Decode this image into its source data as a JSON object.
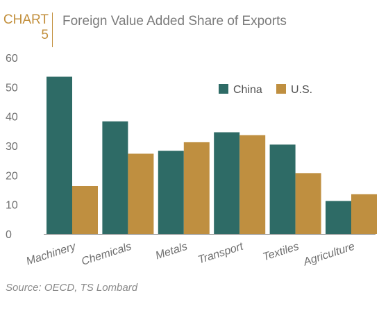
{
  "header": {
    "chart_word": "CHART",
    "chart_number": "5",
    "title": "Foreign Value Added Share of Exports"
  },
  "source": "Source: OECD, TS Lombard",
  "colors": {
    "china": "#2e6b66",
    "us": "#bf8f40",
    "accent": "#c28f3c"
  },
  "chart_data": {
    "type": "bar",
    "title": "Foreign Value Added Share of Exports",
    "categories": [
      "Machinery",
      "Chemicals",
      "Metals",
      "Transport",
      "Textiles",
      "Agriculture"
    ],
    "series": [
      {
        "name": "China",
        "values": [
          53.5,
          38.3,
          28.3,
          34.6,
          30.4,
          11.2
        ]
      },
      {
        "name": "U.S.",
        "values": [
          16.3,
          27.3,
          31.2,
          33.6,
          20.7,
          13.5
        ]
      }
    ],
    "ylim": [
      0,
      60
    ],
    "yticks": [
      0,
      10,
      20,
      30,
      40,
      50,
      60
    ],
    "xlabel": "",
    "ylabel": "",
    "grid": false,
    "legend_position": "top-right"
  }
}
